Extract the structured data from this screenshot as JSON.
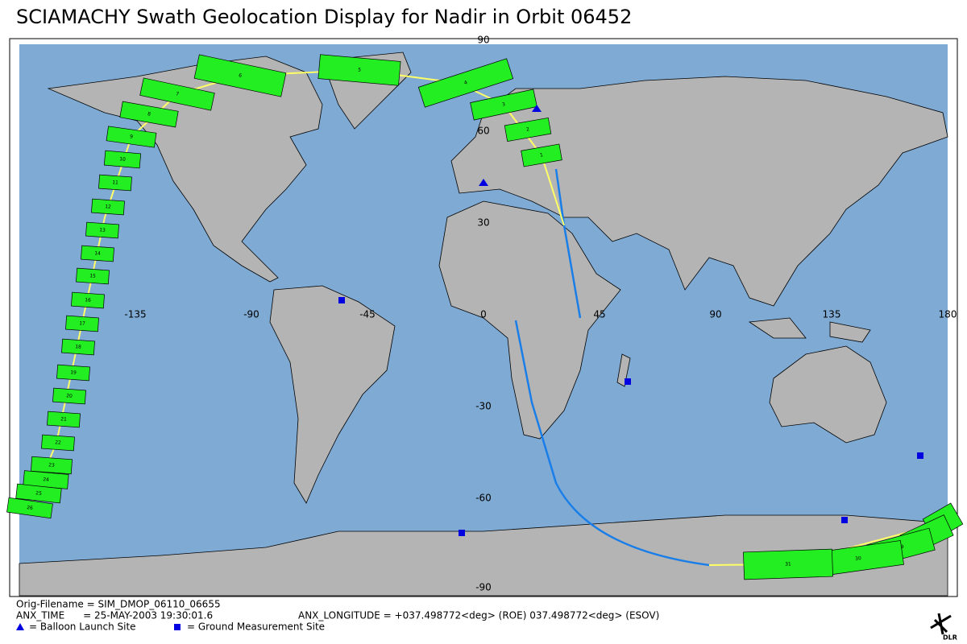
{
  "header": {
    "title": "SCIAMACHY Swath Geolocation Display for Nadir in Orbit 06452"
  },
  "map": {
    "lon_labels": [
      -135,
      -90,
      -45,
      0,
      45,
      90,
      135,
      180
    ],
    "lat_labels": [
      90,
      60,
      30,
      -30,
      -60,
      -90
    ],
    "segments": [
      1,
      2,
      3,
      4,
      5,
      6,
      7,
      8,
      9,
      10,
      11,
      12,
      13,
      14,
      15,
      16,
      17,
      18,
      19,
      20,
      21,
      22,
      23,
      24,
      25,
      26,
      27,
      28,
      29,
      30,
      31
    ]
  },
  "footer": {
    "filename": "Orig-Filename = SIM_DMOP_06110_06655",
    "anx_time": "ANX_TIME      = 25-MAY-2003 19:30:01.6",
    "anx_longitude": "ANX_LONGITUDE = +037.498772<deg> (ROE) 037.498772<deg> (ESOV)",
    "legend_balloon": "= Balloon Launch Site",
    "legend_ground": "= Ground Measurement Site",
    "logo": "DLR"
  }
}
